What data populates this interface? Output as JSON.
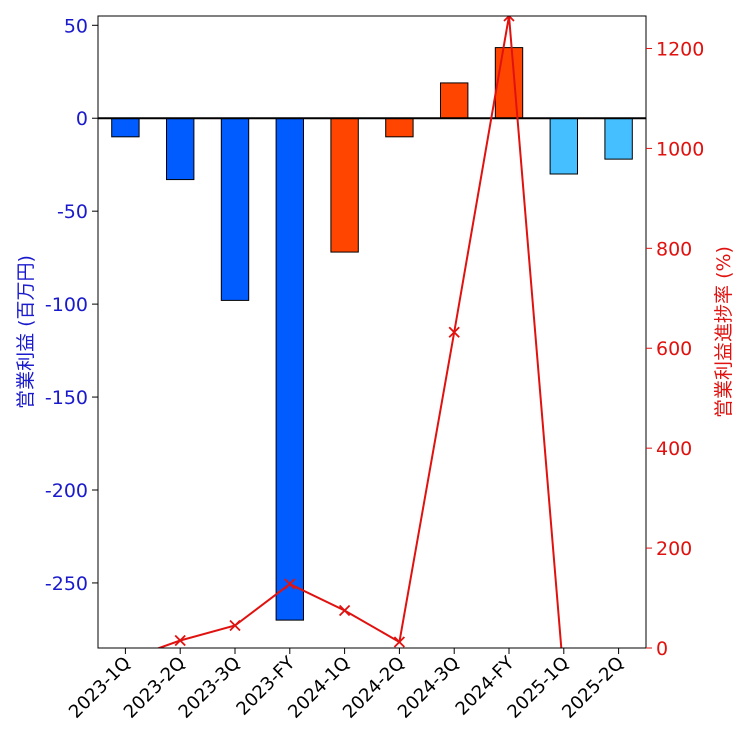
{
  "chart_data": {
    "type": "bar",
    "categories": [
      "2023-1Q",
      "2023-2Q",
      "2023-3Q",
      "2023-FY",
      "2024-1Q",
      "2024-2Q",
      "2024-3Q",
      "2024-FY",
      "2025-1Q",
      "2025-2Q"
    ],
    "bar_colors": [
      "#005cff",
      "#005cff",
      "#005cff",
      "#005cff",
      "#ff4500",
      "#ff4500",
      "#ff4500",
      "#ff4500",
      "#45bfff",
      "#45bfff"
    ],
    "series": [
      {
        "values": [
          -10,
          -33,
          -98,
          -270,
          -72,
          -10,
          19,
          38,
          -30,
          -22
        ],
        "axis": "left",
        "kind": "bar"
      },
      {
        "values": [
          -24,
          15,
          45,
          128,
          75,
          12,
          632,
          1265,
          -60,
          null
        ],
        "axis": "right",
        "kind": "line",
        "color": "#e0120f",
        "marker": "x"
      }
    ],
    "ylabel": "営業利益 (百万円)",
    "y2label": "営業利益進捗率 (%)",
    "ylim": [
      -285,
      55
    ],
    "y2lim": [
      0,
      1265
    ],
    "yticks": [
      "50",
      "0",
      "-50",
      "-100",
      "-150",
      "-200",
      "-250"
    ],
    "y2ticks": [
      "1200",
      "1000",
      "800",
      "600",
      "400",
      "200",
      "0"
    ],
    "ytick_values": [
      50,
      0,
      -50,
      -100,
      -150,
      -200,
      -250
    ],
    "y2tick_values": [
      1200,
      1000,
      800,
      600,
      400,
      200,
      0
    ],
    "left_axis_color": "#1a1acd",
    "right_axis_color": "#e0120f",
    "grid": false,
    "legend": "none"
  }
}
